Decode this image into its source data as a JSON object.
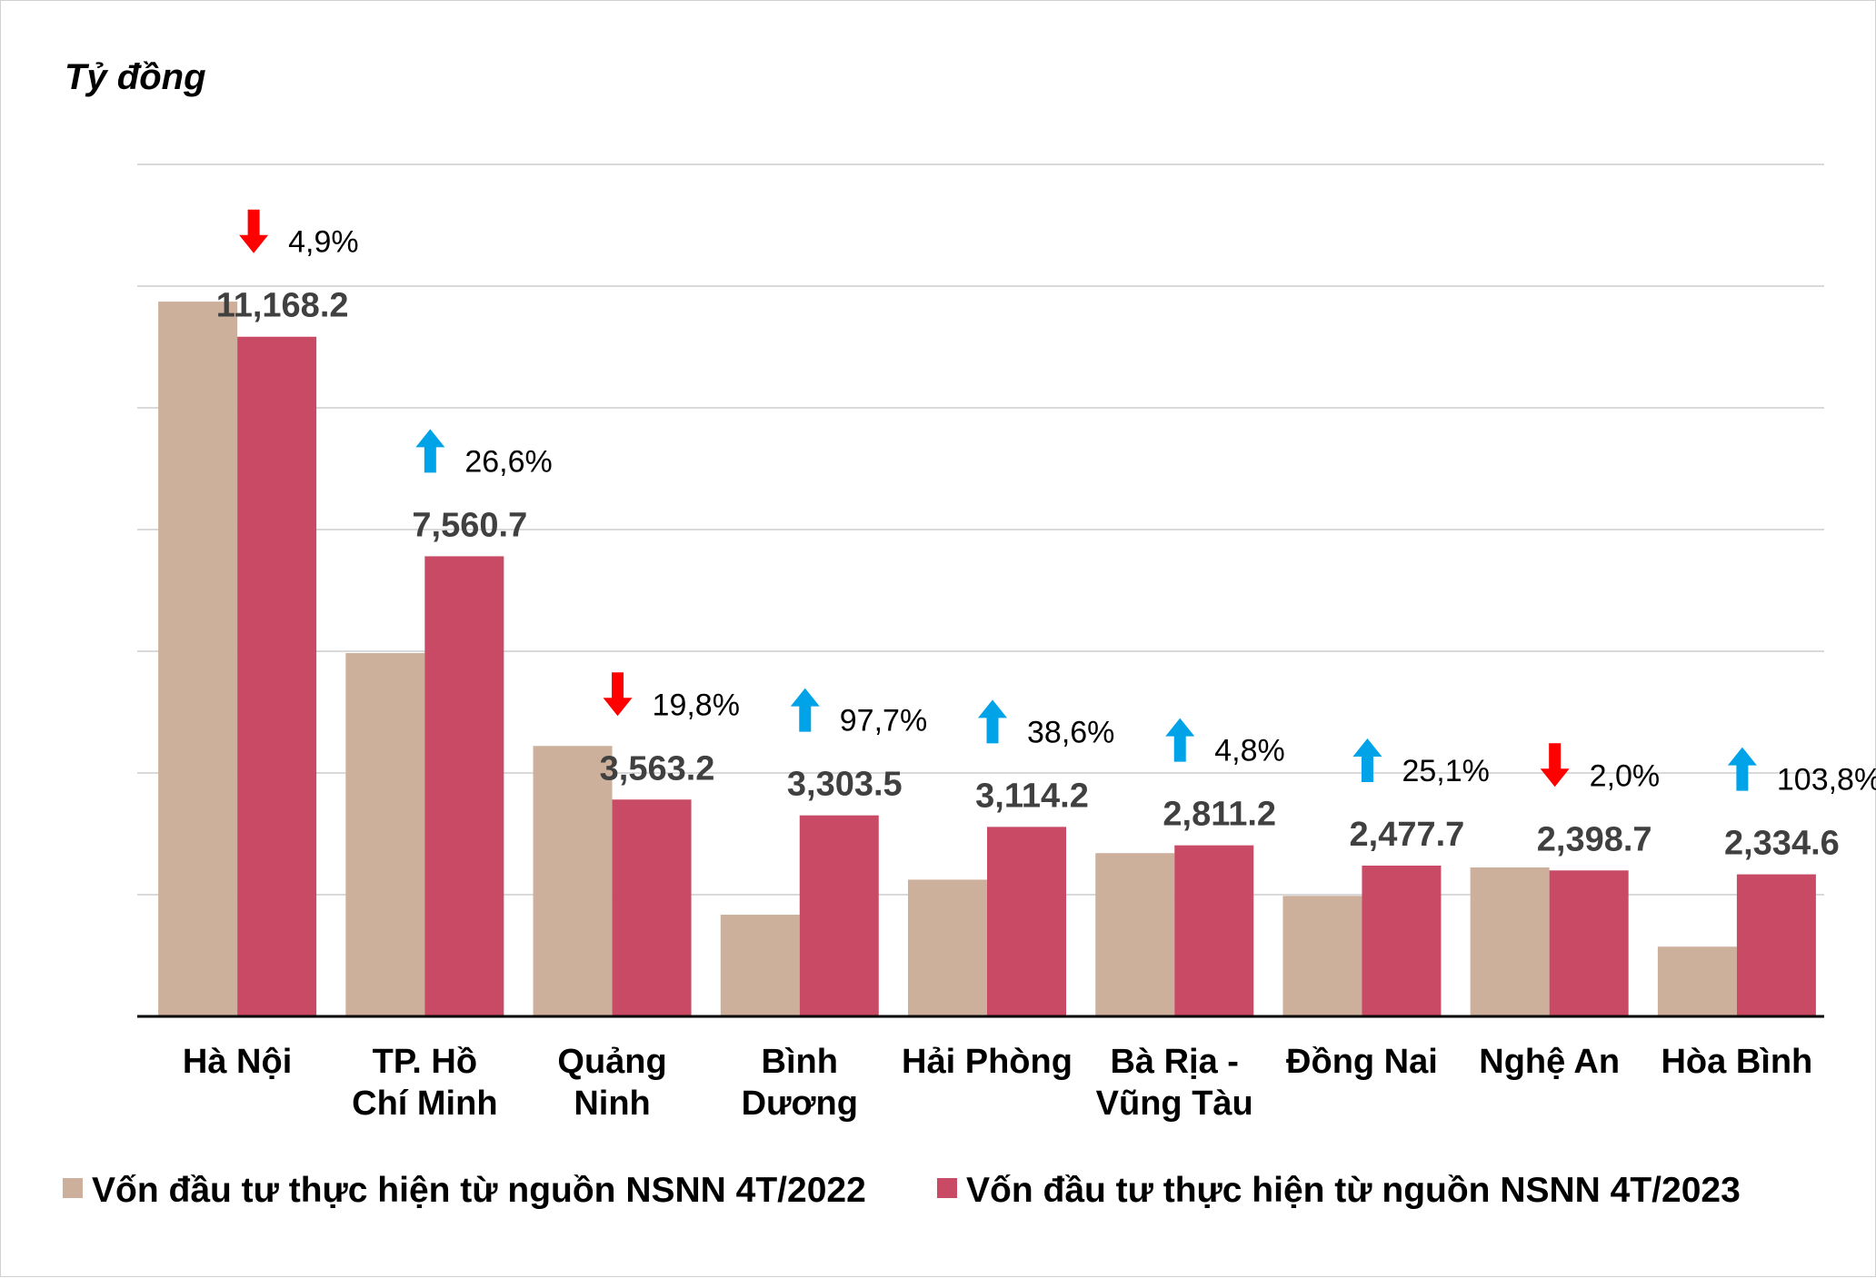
{
  "chart_data": {
    "type": "bar",
    "unit_label": "Tỷ đồng",
    "categories": [
      [
        "Hà Nội"
      ],
      [
        "TP. Hồ",
        "Chí Minh"
      ],
      [
        "Quảng",
        "Ninh"
      ],
      [
        "Bình",
        "Dương"
      ],
      [
        "Hải Phòng"
      ],
      [
        "Bà Rịa -",
        "Vũng Tàu"
      ],
      [
        "Đồng Nai"
      ],
      [
        "Nghệ An"
      ],
      [
        "Hòa Bình"
      ]
    ],
    "series": [
      {
        "name": "Vốn đầu tư thực hiện từ nguồn NSNN 4T/2022",
        "color": "#CDB09C",
        "values": [
          11745,
          5970,
          4444,
          1671,
          2247,
          2683,
          1981,
          2448,
          1146
        ]
      },
      {
        "name": "Vốn đầu tư thực hiện từ nguồn NSNN 4T/2023",
        "color": "#C84A64",
        "values": [
          11168.2,
          7560.7,
          3563.2,
          3303.5,
          3114.2,
          2811.2,
          2477.7,
          2398.7,
          2334.6
        ]
      }
    ],
    "value_labels": [
      "11,168.2",
      "7,560.7",
      "3,563.2",
      "3,303.5",
      "3,114.2",
      "2,811.2",
      "2,477.7",
      "2,398.7",
      "2,334.6"
    ],
    "changes": [
      {
        "direction": "down",
        "label": "4,9%"
      },
      {
        "direction": "up",
        "label": "26,6%"
      },
      {
        "direction": "down",
        "label": "19,8%"
      },
      {
        "direction": "up",
        "label": "97,7%"
      },
      {
        "direction": "up",
        "label": "38,6%"
      },
      {
        "direction": "up",
        "label": "4,8%"
      },
      {
        "direction": "up",
        "label": "25,1%"
      },
      {
        "direction": "down",
        "label": "2,0%"
      },
      {
        "direction": "up",
        "label": "103,8%"
      }
    ],
    "colors": {
      "up": "#00A2E8",
      "down": "#FF0000",
      "grid": "#D9D9D9",
      "axis": "#000000"
    },
    "ylim": [
      0,
      14000
    ],
    "ytick_step": 2000,
    "show_y_tick_labels": false,
    "grid": true,
    "legend_position": "bottom"
  }
}
